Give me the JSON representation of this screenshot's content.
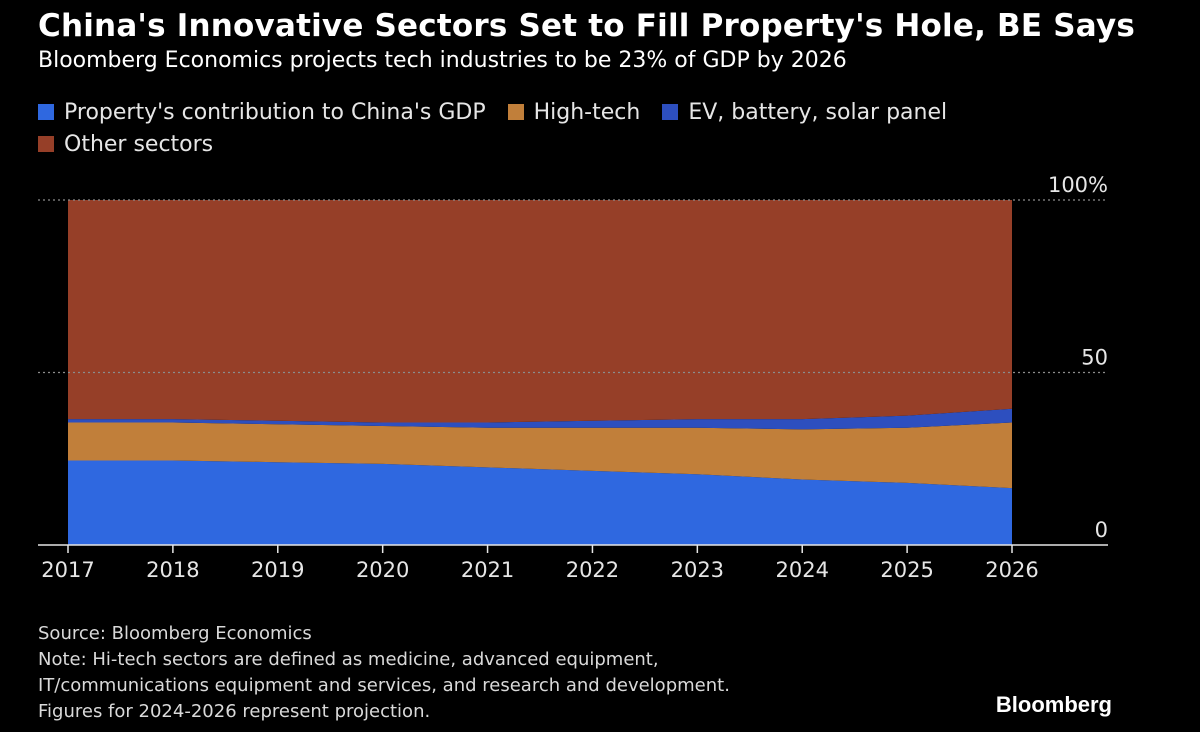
{
  "chart_data": {
    "type": "area",
    "stacked": true,
    "title": "China's Innovative Sectors Set to Fill Property's Hole, BE Says",
    "subtitle": "Bloomberg Economics projects tech industries to be 23% of GDP by 2026",
    "categories": [
      "2017",
      "2018",
      "2019",
      "2020",
      "2021",
      "2022",
      "2023",
      "2024",
      "2025",
      "2026"
    ],
    "series": [
      {
        "name": "Property's contribution to China's GDP",
        "color": "#2f68e0",
        "values": [
          24.5,
          24.5,
          24,
          23.5,
          22.5,
          21.5,
          20.5,
          19,
          18,
          16.5
        ]
      },
      {
        "name": "High-tech",
        "color": "#c17f3a",
        "values": [
          11,
          11,
          11,
          11,
          11.5,
          12.5,
          13.5,
          14.5,
          16,
          19
        ]
      },
      {
        "name": "EV, battery, solar panel",
        "color": "#2d4fbf",
        "values": [
          1,
          1,
          1,
          1,
          1.5,
          2,
          2.5,
          3,
          3.5,
          4
        ]
      },
      {
        "name": "Other sectors",
        "color": "#963f28",
        "values": [
          63.5,
          63.5,
          64,
          64.5,
          64.5,
          64,
          63.5,
          63.5,
          62.5,
          60.5
        ]
      }
    ],
    "ylim": [
      0,
      100
    ],
    "yticks": [
      {
        "value": 100,
        "label": "100%"
      },
      {
        "value": 50,
        "label": "50"
      },
      {
        "value": 0,
        "label": "0"
      }
    ],
    "grid": true,
    "legend_position": "top-left",
    "xlabel": "",
    "ylabel": ""
  },
  "footer": {
    "source": "Source: Bloomberg Economics",
    "note_lines": [
      "Note: Hi-tech sectors are defined as medicine, advanced equipment,",
      "IT/communications equipment and services, and research and development.",
      "Figures for 2024-2026 represent projection."
    ]
  },
  "brand": "Bloomberg",
  "colors": {
    "background": "#000000",
    "gridline": "#8c8c8c",
    "axis": "#e6e6e6"
  }
}
